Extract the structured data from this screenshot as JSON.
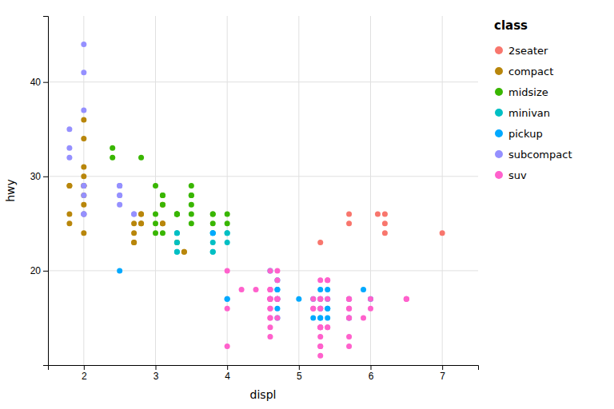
{
  "chart_data": {
    "type": "scatter",
    "title": "class",
    "xlabel": "displ",
    "ylabel": "hwy",
    "series": [
      {
        "name": "2seater",
        "color": "#F8766D",
        "x": [
          5.7,
          5.7,
          6.1,
          6.2,
          6.2,
          6.2,
          7.0,
          5.3
        ],
        "values": [
          26,
          25,
          26,
          26,
          25,
          24,
          24,
          23
        ]
      },
      {
        "name": "compact",
        "color": "#B8860B",
        "x": [
          1.8,
          1.8,
          2.0,
          2.0,
          2.8,
          2.8,
          3.1,
          1.8,
          1.8,
          2.0,
          2.0,
          2.8,
          2.8,
          3.1,
          3.1,
          2.7,
          2.7,
          2.7,
          2.7,
          3.4,
          3.4,
          2.0,
          2.0,
          2.0,
          2.0,
          2.0,
          2.0,
          2.0
        ],
        "values": [
          29,
          29,
          31,
          30,
          26,
          26,
          27,
          26,
          25,
          28,
          27,
          25,
          25,
          25,
          25,
          24,
          25,
          23,
          23,
          22,
          22,
          34,
          36,
          29,
          26,
          29,
          29,
          24
        ]
      },
      {
        "name": "midsize",
        "color": "#39B600",
        "x": [
          2.8,
          3.1,
          3.1,
          3.1,
          3.1,
          3.5,
          3.5,
          3.5,
          3.0,
          3.3,
          3.3,
          3.3,
          3.3,
          3.8,
          3.8,
          3.8,
          4.0,
          4.0,
          2.4,
          2.4,
          3.0,
          3.0,
          3.5,
          3.5,
          3.0,
          3.5,
          3.3
        ],
        "values": [
          32,
          28,
          28,
          27,
          24,
          28,
          29,
          28,
          29,
          26,
          26,
          26,
          26,
          25,
          26,
          26,
          25,
          26,
          32,
          33,
          26,
          25,
          27,
          26,
          24,
          25,
          23
        ]
      },
      {
        "name": "minivan",
        "color": "#00BFC4",
        "x": [
          3.8,
          3.8,
          3.8,
          3.8,
          4.0,
          4.0,
          3.3,
          3.3,
          3.3,
          3.3,
          3.3,
          3.8,
          4.0
        ],
        "values": [
          24,
          24,
          22,
          22,
          24,
          24,
          22,
          22,
          24,
          24,
          23,
          23,
          23
        ]
      },
      {
        "name": "pickup",
        "color": "#00A9FF",
        "x": [
          4.7,
          4.7,
          4.7,
          4.7,
          4.7,
          4.7,
          4.7,
          5.2,
          5.2,
          5.7,
          5.9,
          4.6,
          5.4,
          5.4,
          5.4,
          4.0,
          4.0,
          4.6,
          5.0,
          5.4,
          5.4,
          3.8,
          5.3,
          5.3,
          5.3,
          5.7,
          6.0,
          5.3,
          5.3,
          2.5
        ],
        "values": [
          19,
          18,
          17,
          17,
          16,
          15,
          18,
          17,
          15,
          15,
          18,
          20,
          15,
          16,
          17,
          17,
          17,
          17,
          17,
          16,
          18,
          24,
          17,
          16,
          18,
          17,
          17,
          15,
          15,
          20
        ]
      },
      {
        "name": "subcompact",
        "color": "#9590FF",
        "x": [
          2.0,
          2.0,
          2.0,
          2.0,
          2.5,
          2.5,
          2.5,
          2.5,
          2.0,
          2.0,
          2.0,
          2.0,
          2.7,
          2.7,
          2.5,
          2.5,
          1.8,
          1.8,
          1.8,
          2.0
        ],
        "values": [
          44,
          41,
          29,
          26,
          28,
          29,
          29,
          29,
          28,
          29,
          26,
          26,
          26,
          26,
          27,
          28,
          33,
          35,
          32,
          37
        ]
      },
      {
        "name": "suv",
        "color": "#FF61CC",
        "x": [
          4.6,
          4.6,
          4.6,
          5.4,
          5.4,
          4.6,
          5.7,
          5.7,
          5.7,
          5.7,
          6.0,
          4.7,
          4.7,
          4.7,
          4.7,
          5.2,
          5.2,
          5.7,
          5.7,
          5.3,
          5.3,
          5.3,
          5.3,
          5.3,
          5.3,
          5.3,
          5.3,
          5.3,
          5.7,
          4.6,
          4.6,
          4.6,
          4.6,
          5.4,
          5.4,
          6.5,
          6.5,
          6.5,
          4.0,
          4.2,
          4.4,
          4.6,
          5.3,
          5.3,
          5.3,
          5.7,
          6.0,
          5.3,
          5.3,
          4.6,
          4.6,
          4.6,
          4.6,
          4.7,
          4.7,
          4.7,
          5.2,
          5.7,
          5.9,
          4.6,
          4.6,
          5.4,
          4.6,
          4.0,
          4.0
        ],
        "values": [
          18,
          17,
          20,
          19,
          19,
          17,
          17,
          17,
          17,
          16,
          16,
          20,
          19,
          17,
          17,
          17,
          16,
          12,
          13,
          14,
          11,
          12,
          12,
          14,
          14,
          13,
          14,
          16,
          15,
          16,
          16,
          17,
          15,
          14,
          14,
          17,
          17,
          17,
          20,
          18,
          18,
          17,
          17,
          17,
          16,
          16,
          17,
          19,
          17,
          14,
          13,
          15,
          17,
          17,
          15,
          17,
          16,
          15,
          15,
          17,
          18,
          17,
          18,
          16,
          12
        ]
      }
    ],
    "xlim": [
      1.5,
      7.5
    ],
    "ylim": [
      10,
      47
    ],
    "xticks": [
      2,
      3,
      4,
      5,
      6,
      7
    ],
    "yticks": [
      20,
      30,
      40
    ],
    "grid": true,
    "legend": "right"
  }
}
